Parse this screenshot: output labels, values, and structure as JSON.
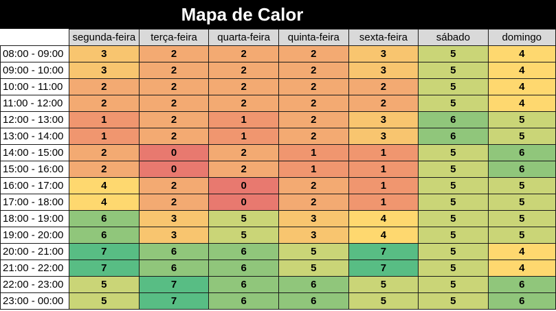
{
  "chart_data": {
    "type": "heatmap",
    "title": "Mapa de Calor",
    "columns": [
      "segunda-feira",
      "terça-feira",
      "quarta-feira",
      "quinta-feira",
      "sexta-feira",
      "sábado",
      "domingo"
    ],
    "rows": [
      "08:00 - 09:00",
      "09:00 - 10:00",
      "10:00 - 11:00",
      "11:00 - 12:00",
      "12:00 - 13:00",
      "13:00 - 14:00",
      "14:00 - 15:00",
      "15:00 - 16:00",
      "16:00 - 17:00",
      "17:00 - 18:00",
      "18:00 - 19:00",
      "19:00 - 20:00",
      "20:00 - 21:00",
      "21:00 - 22:00",
      "22:00 - 23:00",
      "23:00 - 00:00"
    ],
    "values": [
      [
        3,
        2,
        2,
        2,
        3,
        5,
        4
      ],
      [
        3,
        2,
        2,
        2,
        3,
        5,
        4
      ],
      [
        2,
        2,
        2,
        2,
        2,
        5,
        4
      ],
      [
        2,
        2,
        2,
        2,
        2,
        5,
        4
      ],
      [
        1,
        2,
        1,
        2,
        3,
        6,
        5
      ],
      [
        1,
        2,
        1,
        2,
        3,
        6,
        5
      ],
      [
        2,
        0,
        2,
        1,
        1,
        5,
        6
      ],
      [
        2,
        0,
        2,
        1,
        1,
        5,
        6
      ],
      [
        4,
        2,
        0,
        2,
        1,
        5,
        5
      ],
      [
        4,
        2,
        0,
        2,
        1,
        5,
        5
      ],
      [
        6,
        3,
        5,
        3,
        4,
        5,
        5
      ],
      [
        6,
        3,
        5,
        3,
        4,
        5,
        5
      ],
      [
        7,
        6,
        6,
        5,
        7,
        5,
        4
      ],
      [
        7,
        6,
        6,
        5,
        7,
        5,
        4
      ],
      [
        5,
        7,
        6,
        6,
        5,
        5,
        6
      ],
      [
        5,
        7,
        6,
        6,
        5,
        5,
        6
      ]
    ],
    "color_scale": {
      "0": "#e8796f",
      "1": "#f0966f",
      "2": "#f3aa72",
      "3": "#f8c56f",
      "4": "#fed86f",
      "5": "#cad577",
      "6": "#90c67b",
      "7": "#58bd84"
    }
  }
}
